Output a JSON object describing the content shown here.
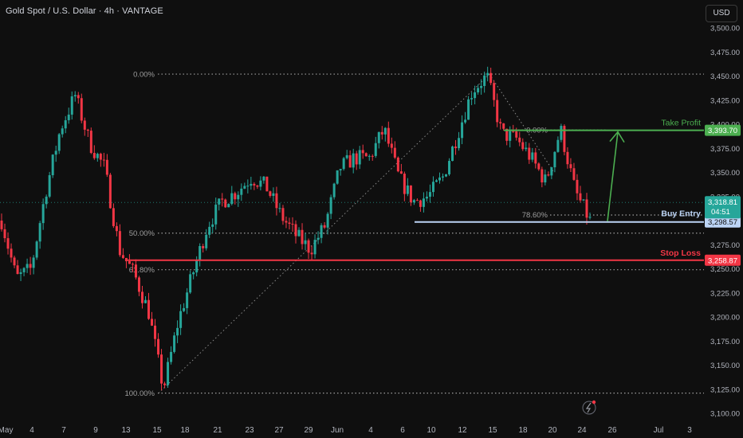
{
  "header": {
    "symbol_title": "Gold Spot / U.S. Dollar · 4h · VANTAGE",
    "currency_button": "USD"
  },
  "chart_data": {
    "type": "candlestick",
    "y_axis": {
      "range": [
        3095,
        3510
      ],
      "ticks": [
        "3,500.00",
        "3,475.00",
        "3,450.00",
        "3,425.00",
        "3,400.00",
        "3,375.00",
        "3,350.00",
        "3,325.00",
        "3,300.00",
        "3,275.00",
        "3,250.00",
        "3,225.00",
        "3,200.00",
        "3,175.00",
        "3,150.00",
        "3,125.00",
        "3,100.00"
      ],
      "tick_values": [
        3500,
        3475,
        3450,
        3425,
        3400,
        3375,
        3350,
        3325,
        3300,
        3275,
        3250,
        3225,
        3200,
        3175,
        3150,
        3125,
        3100
      ]
    },
    "x_axis": {
      "ticks": [
        "May",
        "4",
        "7",
        "9",
        "13",
        "15",
        "18",
        "21",
        "23",
        "27",
        "29",
        "Jun",
        "4",
        "6",
        "10",
        "12",
        "15",
        "18",
        "20",
        "24",
        "26",
        "Jul",
        "3"
      ]
    },
    "price_series": {
      "name": "XAUUSD 4h",
      "anchors": [
        [
          "Apr 30",
          3300
        ],
        [
          "May 1",
          3240
        ],
        [
          "May 2",
          3250
        ],
        [
          "May 5",
          3330
        ],
        [
          "May 6",
          3395
        ],
        [
          "May 7",
          3430
        ],
        [
          "May 8",
          3380
        ],
        [
          "May 9",
          3355
        ],
        [
          "May 12",
          3270
        ],
        [
          "May 13",
          3245
        ],
        [
          "May 14",
          3205
        ],
        [
          "May 15",
          3125
        ],
        [
          "May 16",
          3195
        ],
        [
          "May 19",
          3245
        ],
        [
          "May 20",
          3295
        ],
        [
          "May 21",
          3320
        ],
        [
          "May 22",
          3330
        ],
        [
          "May 23",
          3345
        ],
        [
          "May 26",
          3335
        ],
        [
          "May 27",
          3305
        ],
        [
          "May 28",
          3285
        ],
        [
          "May 29",
          3270
        ],
        [
          "May 30",
          3295
        ],
        [
          "Jun 2",
          3355
        ],
        [
          "Jun 3",
          3365
        ],
        [
          "Jun 4",
          3365
        ],
        [
          "Jun 5",
          3395
        ],
        [
          "Jun 6",
          3345
        ],
        [
          "Jun 9",
          3320
        ],
        [
          "Jun 10",
          3325
        ],
        [
          "Jun 11",
          3345
        ],
        [
          "Jun 12",
          3390
        ],
        [
          "Jun 13",
          3435
        ],
        [
          "Jun 16",
          3450
        ],
        [
          "Jun 17",
          3390
        ],
        [
          "Jun 18",
          3385
        ],
        [
          "Jun 19",
          3365
        ],
        [
          "Jun 20",
          3340
        ],
        [
          "Jun 23",
          3395
        ],
        [
          "Jun 24",
          3330
        ],
        [
          "Jun 25",
          3300
        ]
      ]
    },
    "fibonacci": {
      "levels": [
        {
          "label": "0.00%",
          "price": 3452
        },
        {
          "label": "50.00%",
          "price": 3287
        },
        {
          "label": "61.80%",
          "price": 3249
        },
        {
          "label": "100.00%",
          "price": 3121
        }
      ],
      "second_levels": [
        {
          "label": "0.00%",
          "price": 3394
        },
        {
          "label": "78.60%",
          "price": 3300
        }
      ]
    },
    "annotations": [
      {
        "label": "Take Profit",
        "price": 3393.7,
        "price_label": "3,393.70",
        "color": "#4caf50"
      },
      {
        "label": "Buy Entry",
        "price": 3298.57,
        "price_label": "3,298.57",
        "color": "#bcd4f5"
      },
      {
        "label": "Stop Loss",
        "price": 3258.87,
        "price_label": "3,258.87",
        "color": "#f23645"
      }
    ],
    "current_price": {
      "price": 3318.81,
      "label": "3,318.81",
      "countdown": "04:51",
      "color": "#26a69a"
    },
    "colors": {
      "up": "#26a69a",
      "down": "#f23645",
      "background": "#0f0f0f",
      "text": "#b2b5be"
    },
    "grid": false
  }
}
